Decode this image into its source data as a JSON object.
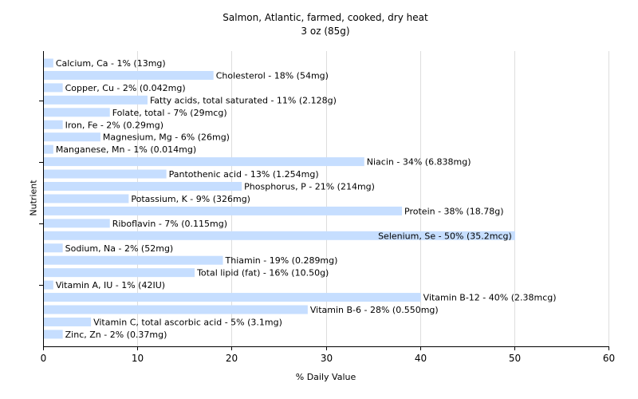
{
  "chart_data": {
    "type": "bar",
    "orientation": "horizontal",
    "title": "Salmon, Atlantic, farmed, cooked, dry heat",
    "subtitle": "3 oz (85g)",
    "xlabel": "% Daily Value",
    "ylabel": "Nutrient",
    "xlim": [
      0,
      60
    ],
    "xticks": [
      "0",
      "10",
      "20",
      "30",
      "40",
      "50",
      "60"
    ],
    "grid": true,
    "bar_color": "#c6deff",
    "grid_color": "#dddddd",
    "bars": [
      {
        "label": "Calcium, Ca - 1% (13mg)",
        "value": 1
      },
      {
        "label": "Cholesterol - 18% (54mg)",
        "value": 18
      },
      {
        "label": "Copper, Cu - 2% (0.042mg)",
        "value": 2
      },
      {
        "label": "Fatty acids, total saturated - 11% (2.128g)",
        "value": 11
      },
      {
        "label": "Folate, total - 7% (29mcg)",
        "value": 7
      },
      {
        "label": "Iron, Fe - 2% (0.29mg)",
        "value": 2
      },
      {
        "label": "Magnesium, Mg - 6% (26mg)",
        "value": 6
      },
      {
        "label": "Manganese, Mn - 1% (0.014mg)",
        "value": 1
      },
      {
        "label": "Niacin - 34% (6.838mg)",
        "value": 34
      },
      {
        "label": "Pantothenic acid - 13% (1.254mg)",
        "value": 13
      },
      {
        "label": "Phosphorus, P - 21% (214mg)",
        "value": 21
      },
      {
        "label": "Potassium, K - 9% (326mg)",
        "value": 9
      },
      {
        "label": "Protein - 38% (18.78g)",
        "value": 38
      },
      {
        "label": "Riboflavin - 7% (0.115mg)",
        "value": 7
      },
      {
        "label": "Selenium, Se - 50% (35.2mcg)",
        "value": 50
      },
      {
        "label": "Sodium, Na - 2% (52mg)",
        "value": 2
      },
      {
        "label": "Thiamin - 19% (0.289mg)",
        "value": 19
      },
      {
        "label": "Total lipid (fat) - 16% (10.50g)",
        "value": 16
      },
      {
        "label": "Vitamin A, IU - 1% (42IU)",
        "value": 1
      },
      {
        "label": "Vitamin B-12 - 40% (2.38mcg)",
        "value": 40
      },
      {
        "label": "Vitamin B-6 - 28% (0.550mg)",
        "value": 28
      },
      {
        "label": "Vitamin C, total ascorbic acid - 5% (3.1mg)",
        "value": 5
      },
      {
        "label": "Zinc, Zn - 2% (0.37mg)",
        "value": 2
      }
    ]
  }
}
